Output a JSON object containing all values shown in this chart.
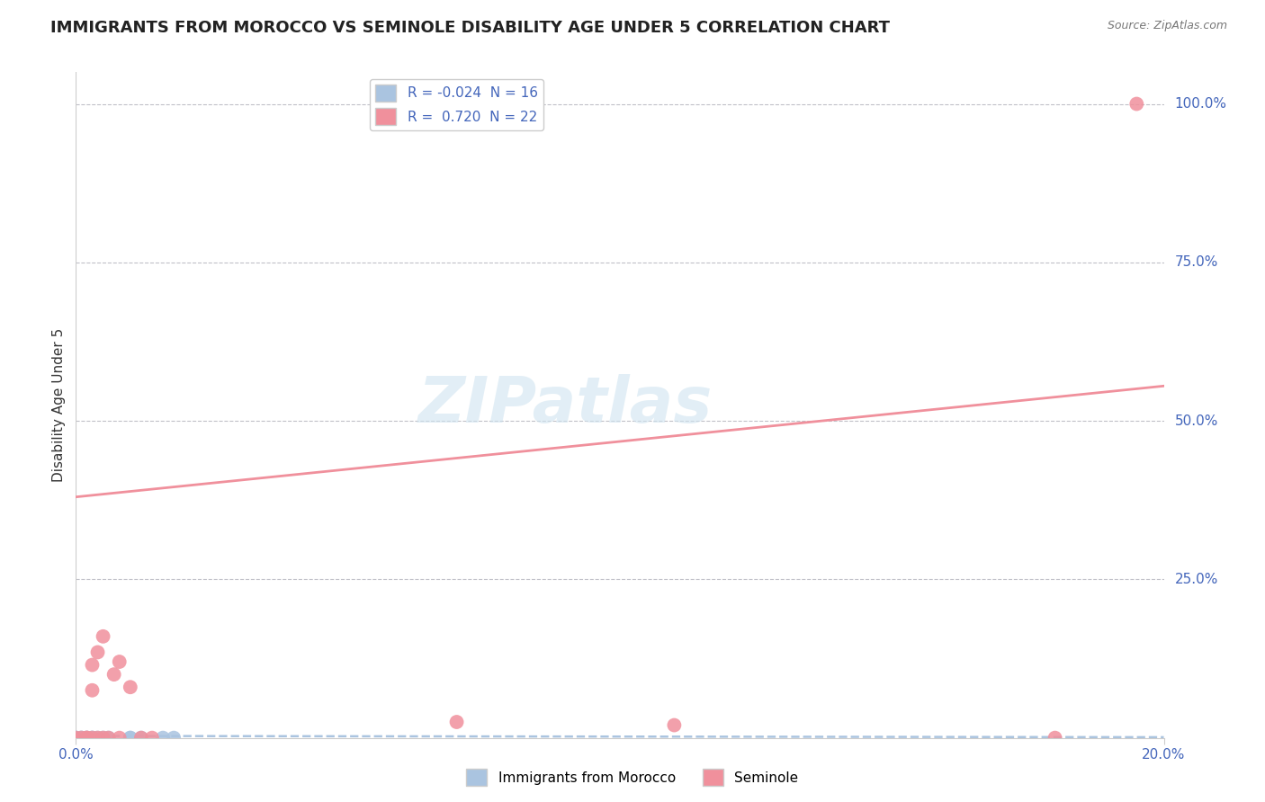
{
  "title": "IMMIGRANTS FROM MOROCCO VS SEMINOLE DISABILITY AGE UNDER 5 CORRELATION CHART",
  "source_text": "Source: ZipAtlas.com",
  "ylabel": "Disability Age Under 5",
  "xlim": [
    0.0,
    0.2
  ],
  "ylim": [
    0.0,
    1.05
  ],
  "ytick_labels": [
    "25.0%",
    "50.0%",
    "75.0%",
    "100.0%"
  ],
  "ytick_values": [
    0.25,
    0.5,
    0.75,
    1.0
  ],
  "background_color": "#ffffff",
  "grid_color": "#c0c0c8",
  "watermark_text": "ZIPatlas",
  "morocco_points_x": [
    0.0,
    0.0,
    0.001,
    0.001,
    0.002,
    0.002,
    0.003,
    0.003,
    0.004,
    0.005,
    0.006,
    0.01,
    0.01,
    0.012,
    0.016,
    0.018
  ],
  "morocco_points_y": [
    0.0,
    0.0,
    0.0,
    0.0,
    0.0,
    0.0,
    0.0,
    0.0,
    0.0,
    0.0,
    0.0,
    0.0,
    0.0,
    0.0,
    0.0,
    0.0
  ],
  "morocco_color": "#aac4e0",
  "morocco_trend_color": "#aac4e0",
  "morocco_R": -0.024,
  "morocco_N": 16,
  "morocco_trend_x": [
    0.0,
    0.2
  ],
  "morocco_trend_y": [
    0.003,
    0.001
  ],
  "seminole_points_x": [
    0.0,
    0.001,
    0.002,
    0.002,
    0.003,
    0.003,
    0.003,
    0.004,
    0.004,
    0.005,
    0.005,
    0.006,
    0.007,
    0.008,
    0.008,
    0.01,
    0.012,
    0.014,
    0.07,
    0.11,
    0.18,
    0.195
  ],
  "seminole_points_y": [
    0.0,
    0.0,
    0.0,
    0.0,
    0.0,
    0.075,
    0.115,
    0.0,
    0.135,
    0.0,
    0.16,
    0.0,
    0.1,
    0.12,
    0.0,
    0.08,
    0.0,
    0.0,
    0.025,
    0.02,
    0.0,
    1.0
  ],
  "seminole_color": "#f0909c",
  "seminole_trend_color": "#f0909c",
  "seminole_R": 0.72,
  "seminole_N": 22,
  "seminole_trend_x": [
    0.0,
    0.2
  ],
  "seminole_trend_y": [
    0.38,
    0.555
  ],
  "legend_blue_label": "Immigrants from Morocco",
  "legend_pink_label": "Seminole",
  "title_fontsize": 13,
  "axis_label_fontsize": 11,
  "tick_fontsize": 11,
  "legend_fontsize": 11
}
